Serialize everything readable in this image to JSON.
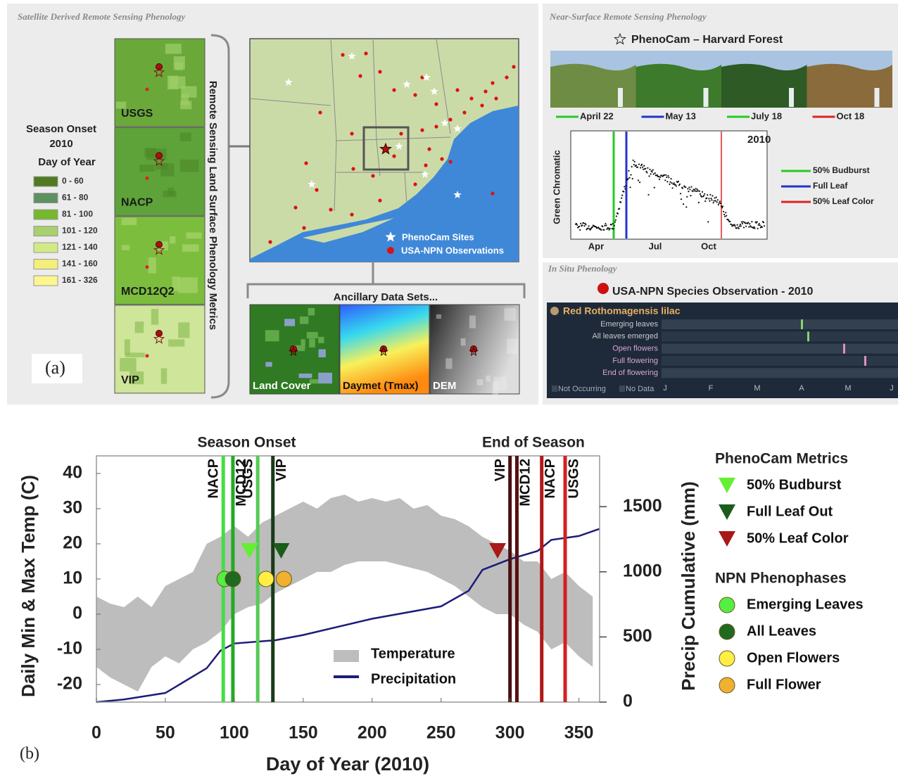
{
  "panel_a": {
    "label": "(a)",
    "satellite": {
      "title": "Satellite Derived Remote Sensing Phenology",
      "legend_title": "Season Onset",
      "legend_year": "2010",
      "legend_subtitle": "Day of Year",
      "legend": [
        {
          "label": "0 - 60",
          "color": "#4f7a1f"
        },
        {
          "label": "61 - 80",
          "color": "#5d9160"
        },
        {
          "label": "81 - 100",
          "color": "#76b82b"
        },
        {
          "label": "101 - 120",
          "color": "#a9d06c"
        },
        {
          "label": "121 - 140",
          "color": "#d2ea86"
        },
        {
          "label": "141 - 160",
          "color": "#f3ef7a"
        },
        {
          "label": "161 - 326",
          "color": "#fcf68e"
        }
      ],
      "tiles": [
        "USGS",
        "NACP",
        "MCD12Q2",
        "VIP"
      ],
      "bracket_label": "Remote Sensing Land Surface Phenology Metrics",
      "map_legend": [
        "PhenoCam Sites",
        "USA-NPN Observations"
      ],
      "ancillary_title": "Ancillary Data Sets...",
      "ancillary": [
        "Land Cover",
        "Daymet (Tmax)",
        "DEM"
      ]
    },
    "near_surface": {
      "title": "Near-Surface Remote Sensing Phenology",
      "site": "PhenoCam – Harvard Forest",
      "photos": [
        {
          "date": "April 22",
          "color": "#22cc22"
        },
        {
          "date": "May 13",
          "color": "#2233cc"
        },
        {
          "date": "July 18",
          "color": "#22cc22"
        },
        {
          "date": "Oct 18",
          "color": "#dd2222"
        }
      ],
      "chart": {
        "ylabel": "Green Chromatic",
        "year": "2010",
        "xlabels": [
          "Apr",
          "Jul",
          "Oct"
        ],
        "legend": [
          {
            "label": "50% Budburst",
            "color": "#22cc22"
          },
          {
            "label": "Full Leaf",
            "color": "#2233cc"
          },
          {
            "label": "50% Leaf Color",
            "color": "#dd2222"
          }
        ]
      }
    },
    "in_situ": {
      "title": "In Situ Phenology",
      "heading": "USA-NPN Species Observation - 2010",
      "species": "Red Rothomagensis lilac",
      "phenophases": [
        "Emerging leaves",
        "All leaves emerged",
        "Open flowers",
        "Full flowering",
        "End of flowering"
      ],
      "key": [
        "Not Occurring",
        "No Data"
      ],
      "months": [
        "J",
        "F",
        "M",
        "A",
        "M",
        "J"
      ]
    }
  },
  "chart_data": {
    "type": "line",
    "panel_label": "(b)",
    "xlabel": "Day of Year (2010)",
    "ylabel": "Daily Min & Max Temp (C)",
    "y2label": "Precip Cumulative (mm)",
    "xlim": [
      0,
      365
    ],
    "ylim": [
      -25,
      45
    ],
    "y2lim": [
      0,
      1890
    ],
    "xticks": [
      0,
      50,
      100,
      150,
      200,
      250,
      300,
      350
    ],
    "yticks": [
      -20,
      -10,
      0,
      10,
      20,
      30,
      40
    ],
    "y2ticks": [
      0,
      500,
      1000,
      1500
    ],
    "series": [
      {
        "name": "Temperature",
        "color": "#bdbdbd",
        "x": [
          0,
          10,
          20,
          30,
          40,
          50,
          60,
          70,
          80,
          90,
          100,
          110,
          120,
          130,
          140,
          150,
          160,
          170,
          180,
          190,
          200,
          210,
          220,
          230,
          240,
          250,
          260,
          270,
          280,
          290,
          300,
          310,
          320,
          330,
          340,
          350,
          360
        ],
        "low": [
          -15,
          -18,
          -20,
          -22,
          -15,
          -12,
          -14,
          -10,
          -8,
          -5,
          0,
          2,
          3,
          6,
          8,
          10,
          12,
          12,
          14,
          15,
          15,
          15,
          14,
          13,
          12,
          10,
          8,
          5,
          2,
          0,
          0,
          -3,
          -5,
          -10,
          -8,
          -12,
          -15
        ],
        "high": [
          5,
          3,
          2,
          5,
          2,
          8,
          10,
          12,
          20,
          22,
          25,
          22,
          26,
          28,
          30,
          32,
          30,
          33,
          34,
          32,
          33,
          32,
          33,
          30,
          31,
          28,
          27,
          25,
          22,
          20,
          18,
          15,
          15,
          10,
          12,
          8,
          5
        ]
      },
      {
        "name": "Precipitation",
        "color": "#1c1c7a",
        "axis": "y2",
        "x": [
          0,
          20,
          50,
          80,
          90,
          100,
          130,
          150,
          200,
          250,
          270,
          280,
          300,
          320,
          330,
          350,
          365
        ],
        "values": [
          0,
          20,
          70,
          260,
          395,
          450,
          475,
          515,
          640,
          735,
          855,
          1015,
          1097,
          1160,
          1245,
          1275,
          1330
        ]
      }
    ],
    "event_groups": [
      {
        "label": "Season Onset",
        "events": [
          {
            "label": "NACP",
            "day": 92,
            "color": "#44dd44"
          },
          {
            "label": "MCD12",
            "day": 99,
            "color": "#22aa22"
          },
          {
            "label": "USGS",
            "day": 117,
            "color": "#55cc55"
          },
          {
            "label": "VIP",
            "day": 128,
            "color": "#1a3a1a"
          }
        ]
      },
      {
        "label": "End of Season",
        "events": [
          {
            "label": "VIP",
            "day": 300,
            "color": "#4a0f0f"
          },
          {
            "label": "MCD12",
            "day": 305,
            "color": "#5a1010"
          },
          {
            "label": "NACP",
            "day": 323,
            "color": "#b01818"
          },
          {
            "label": "USGS",
            "day": 340,
            "color": "#d42020"
          }
        ]
      }
    ],
    "marker_groups": [
      {
        "title": "PhenoCam Metrics",
        "shape": "triangle",
        "items": [
          {
            "name": "50% Budburst",
            "color": "#66ee33",
            "day": 111,
            "temp": 18
          },
          {
            "name": "Full Leaf Out",
            "color": "#1a5c1a",
            "day": 134,
            "temp": 18
          },
          {
            "name": "50% Leaf Color",
            "color": "#a81818",
            "day": 291,
            "temp": 18
          }
        ]
      },
      {
        "title": "NPN Phenophases",
        "shape": "circle",
        "items": [
          {
            "name": "Emerging Leaves",
            "color": "#55ee44",
            "day": 93,
            "temp": 10
          },
          {
            "name": "All Leaves",
            "color": "#1f6a1f",
            "day": 99,
            "temp": 10
          },
          {
            "name": "Open Flowers",
            "color": "#ffee44",
            "day": 123,
            "temp": 10
          },
          {
            "name": "Full Flower",
            "color": "#f0b030",
            "day": 136,
            "temp": 10
          }
        ]
      }
    ]
  }
}
